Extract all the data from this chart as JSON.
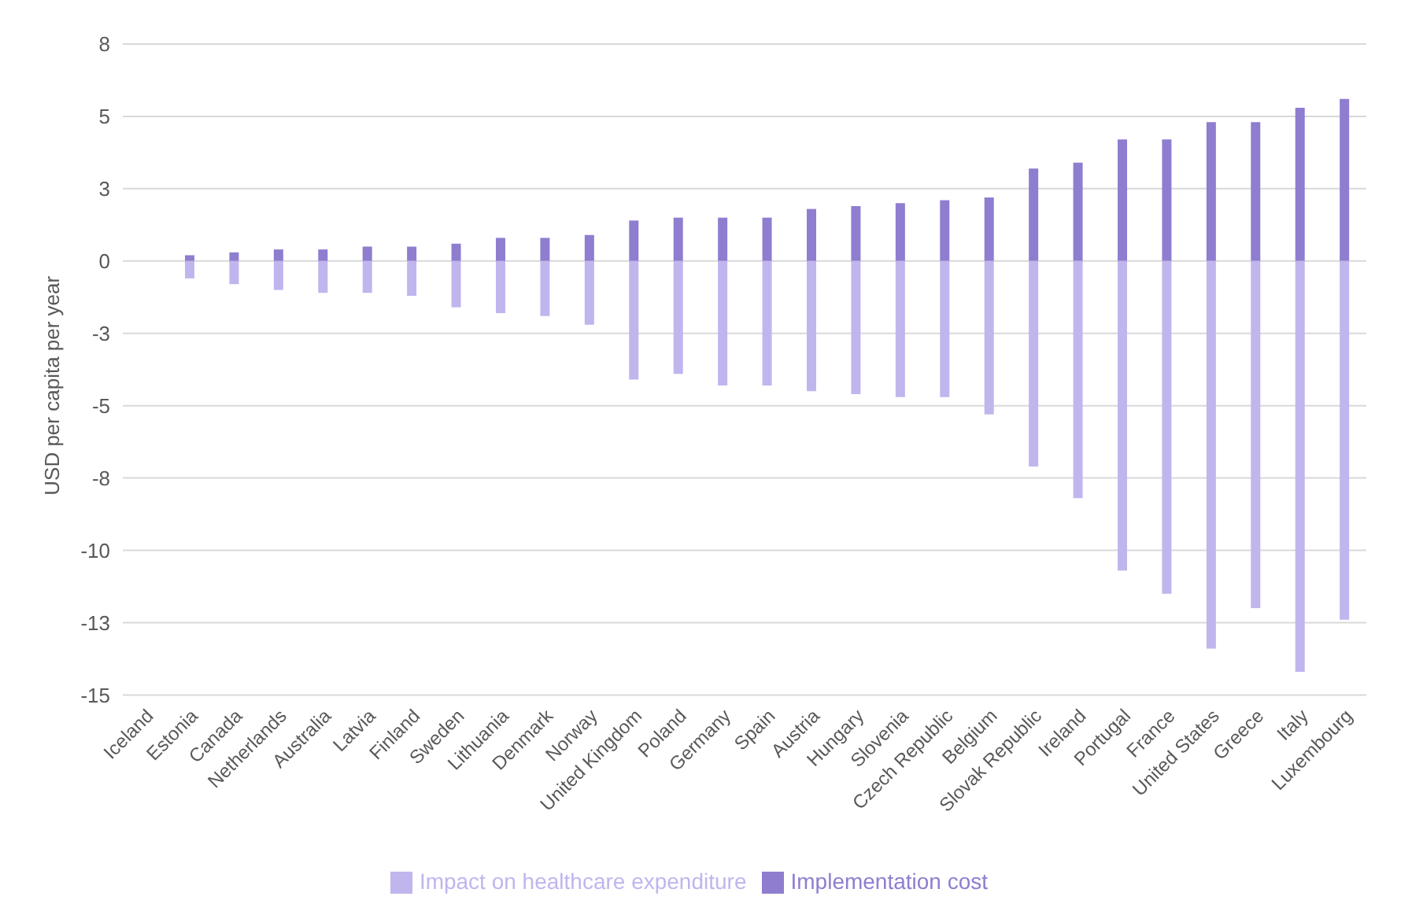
{
  "chart_data": {
    "type": "bar",
    "stacked": true,
    "ylabel": "USD per capita per year",
    "categories": [
      "Iceland",
      "Estonia",
      "Canada",
      "Netherlands",
      "Australia",
      "Latvia",
      "Finland",
      "Sweden",
      "Lithuania",
      "Denmark",
      "Norway",
      "United Kingdom",
      "Poland",
      "Germany",
      "Spain",
      "Austria",
      "Hungary",
      "Slovenia",
      "Czech Republic",
      "Belgium",
      "Slovak Republic",
      "Ireland",
      "Portugal",
      "France",
      "United States",
      "Greece",
      "Italy",
      "Luxembourg"
    ],
    "series": [
      {
        "name": "Implementation cost",
        "color": "#8f7dd0",
        "values": [
          0,
          0.2,
          0.3,
          0.4,
          0.4,
          0.5,
          0.5,
          0.6,
          0.8,
          0.8,
          0.9,
          1.4,
          1.5,
          1.5,
          1.5,
          1.8,
          1.9,
          2.0,
          2.1,
          2.2,
          3.2,
          3.4,
          4.2,
          4.2,
          4.8,
          4.8,
          5.3,
          5.6
        ]
      },
      {
        "name": "Impact on healthcare expenditure",
        "color": "#c1b5ee",
        "values": [
          0,
          -0.6,
          -0.8,
          -1.0,
          -1.1,
          -1.1,
          -1.2,
          -1.6,
          -1.8,
          -1.9,
          -2.2,
          -4.1,
          -3.9,
          -4.3,
          -4.3,
          -4.5,
          -4.6,
          -4.7,
          -4.7,
          -5.3,
          -7.1,
          -8.2,
          -10.7,
          -11.5,
          -13.4,
          -12.0,
          -14.2,
          -12.4
        ]
      }
    ],
    "ylim": [
      -15,
      7.5
    ],
    "yticks": [
      {
        "value": 7.5,
        "label": "8"
      },
      {
        "value": 5,
        "label": "5"
      },
      {
        "value": 2.5,
        "label": "3"
      },
      0,
      {
        "value": -2.5,
        "label": "-3"
      },
      {
        "value": -5,
        "label": "-5"
      },
      {
        "value": -7.5,
        "label": "-8"
      },
      {
        "value": -10,
        "label": "-10"
      },
      {
        "value": -12.5,
        "label": "-13"
      },
      {
        "value": -15,
        "label": "-15"
      }
    ],
    "grid": "y",
    "legend": "bottom"
  }
}
